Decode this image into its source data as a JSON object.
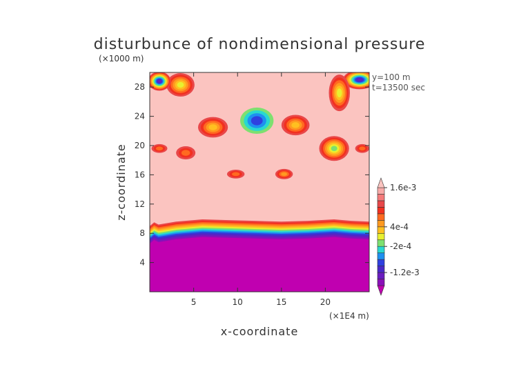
{
  "chart_data": {
    "type": "heatmap",
    "title": "disturbunce of nondimensional pressure",
    "z_unit": "(×1000 m)",
    "x_unit": "(×1E4 m)",
    "xlabel": "x-coordinate",
    "ylabel": "z-coordinate",
    "info": [
      "y=100 m",
      "t=13500 sec"
    ],
    "xlim": [
      0,
      25
    ],
    "ylim": [
      0,
      30
    ],
    "x_ticks": [
      {
        "value": 5,
        "label": "5"
      },
      {
        "value": 10,
        "label": "10"
      },
      {
        "value": 15,
        "label": "15"
      },
      {
        "value": 20,
        "label": "20"
      }
    ],
    "y_ticks": [
      {
        "value": 4,
        "label": "4"
      },
      {
        "value": 8,
        "label": "8"
      },
      {
        "value": 12,
        "label": "12"
      },
      {
        "value": 16,
        "label": "16"
      },
      {
        "value": 20,
        "label": "20"
      },
      {
        "value": 24,
        "label": "24"
      },
      {
        "value": 28,
        "label": "28"
      }
    ],
    "colorbar": {
      "levels": [
        {
          "color": "#c000b0",
          "value": -0.0018
        },
        {
          "color": "#8a10b8",
          "value": -0.0015
        },
        {
          "color": "#6a1cc0",
          "value": -0.0012
        },
        {
          "color": "#4a28c8",
          "value": -0.0009
        },
        {
          "color": "#2f40e0",
          "value": -0.0006
        },
        {
          "color": "#1e90f0",
          "value": -0.0004
        },
        {
          "color": "#28d8d0",
          "value": -0.0002
        },
        {
          "color": "#7de070",
          "value": 0.0
        },
        {
          "color": "#e8f030",
          "value": 0.0002
        },
        {
          "color": "#ffc020",
          "value": 0.0004
        },
        {
          "color": "#ff9a20",
          "value": 0.0006
        },
        {
          "color": "#ff6a20",
          "value": 0.0008
        },
        {
          "color": "#f23020",
          "value": 0.001
        },
        {
          "color": "#e8484a",
          "value": 0.0012
        },
        {
          "color": "#f47a7a",
          "value": 0.0014
        },
        {
          "color": "#f8aaa8",
          "value": 0.0016
        },
        {
          "color": "#fbc4c0",
          "value": 0.0018
        }
      ],
      "labels": [
        {
          "value": 0.0016,
          "label": "1.6e-3"
        },
        {
          "value": 0.0004,
          "label": "4e-4"
        },
        {
          "value": -0.0002,
          "label": "-2e-4"
        },
        {
          "value": -0.0012,
          "label": "-1.2e-3"
        }
      ]
    },
    "background_color": "#fbc4c0",
    "lower_region_color": "#c000b0",
    "layer_boundary": [
      [
        0,
        9.0
      ],
      [
        0.5,
        9.5
      ],
      [
        1,
        9.2
      ],
      [
        3,
        9.6
      ],
      [
        6,
        9.9
      ],
      [
        9,
        9.8
      ],
      [
        12,
        9.7
      ],
      [
        15,
        9.6
      ],
      [
        18,
        9.7
      ],
      [
        21,
        9.9
      ],
      [
        23,
        9.7
      ],
      [
        25,
        9.6
      ]
    ],
    "features": [
      {
        "x": 12.2,
        "z": 23.4,
        "rx": 1.9,
        "rz": 1.8,
        "min": 0.0,
        "peak": -0.0006
      },
      {
        "x": 7.2,
        "z": 22.5,
        "rx": 1.7,
        "rz": 1.4,
        "min": 0.0012,
        "peak": 0.0004
      },
      {
        "x": 16.6,
        "z": 22.8,
        "rx": 1.6,
        "rz": 1.4,
        "min": 0.0012,
        "peak": 0.0004
      },
      {
        "x": 21.0,
        "z": 19.6,
        "rx": 1.7,
        "rz": 1.7,
        "min": 0.0012,
        "peak": 0.0
      },
      {
        "x": 4.1,
        "z": 19.0,
        "rx": 1.1,
        "rz": 0.9,
        "min": 0.0012,
        "peak": 0.0008
      },
      {
        "x": 1.1,
        "z": 19.6,
        "rx": 0.9,
        "rz": 0.6,
        "min": 0.0012,
        "peak": 0.0008
      },
      {
        "x": 24.2,
        "z": 19.6,
        "rx": 0.8,
        "rz": 0.6,
        "min": 0.0012,
        "peak": 0.0008
      },
      {
        "x": 9.8,
        "z": 16.1,
        "rx": 1.0,
        "rz": 0.6,
        "min": 0.0012,
        "peak": 0.0008
      },
      {
        "x": 15.3,
        "z": 16.1,
        "rx": 1.0,
        "rz": 0.7,
        "min": 0.0012,
        "peak": 0.0006
      },
      {
        "x": 3.5,
        "z": 28.3,
        "rx": 1.6,
        "rz": 1.6,
        "min": 0.0012,
        "peak": 0.0002
      },
      {
        "x": 1.1,
        "z": 28.8,
        "rx": 1.3,
        "rz": 1.3,
        "min": 0.0012,
        "peak": -0.0012
      },
      {
        "x": 23.9,
        "z": 29.0,
        "rx": 1.9,
        "rz": 1.3,
        "min": 0.0012,
        "peak": -0.0012
      },
      {
        "x": 21.6,
        "z": 27.2,
        "rx": 1.2,
        "rz": 2.5,
        "min": 0.0012,
        "peak": 0.0002
      }
    ]
  }
}
